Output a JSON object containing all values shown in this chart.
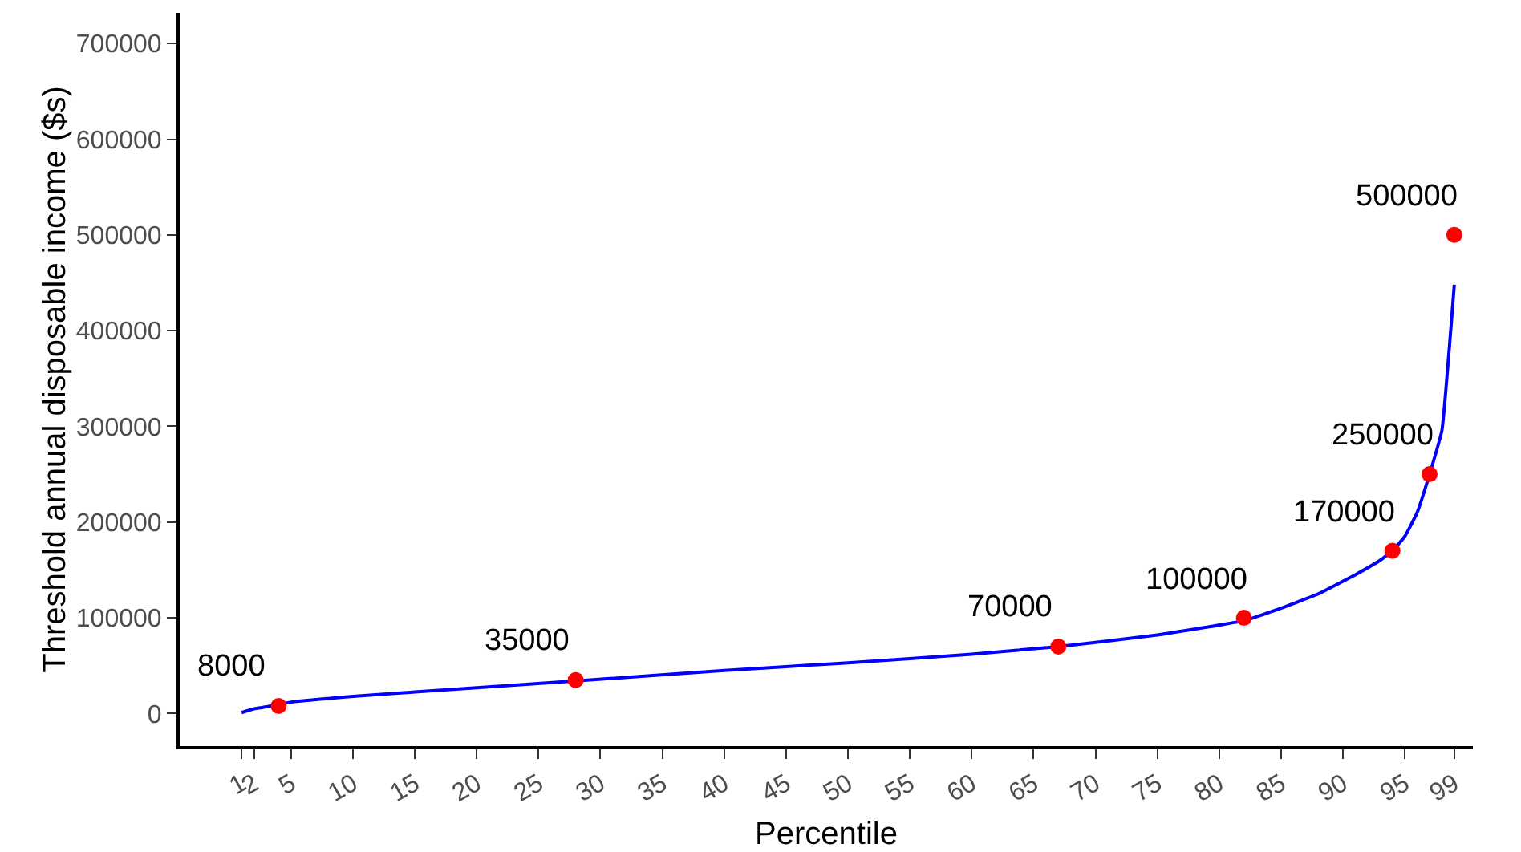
{
  "chart_data": {
    "type": "line",
    "xlabel": "Percentile",
    "ylabel": "Threshold annual disposable income ($s)",
    "xlim": [
      -4,
      100.5
    ],
    "ylim": [
      -34000,
      732000
    ],
    "xticks": [
      1,
      2,
      5,
      10,
      15,
      20,
      25,
      30,
      35,
      40,
      45,
      50,
      55,
      60,
      65,
      70,
      75,
      80,
      85,
      90,
      95,
      99
    ],
    "yticks": [
      0,
      100000,
      200000,
      300000,
      400000,
      500000,
      600000,
      700000
    ],
    "grid": false,
    "series": [
      {
        "color": "#0000ff",
        "line_style": "solid",
        "marker": "none",
        "x": [
          1,
          2,
          3,
          5,
          10,
          20,
          28,
          40,
          50,
          60,
          67,
          75,
          82,
          85,
          88,
          91,
          93,
          94,
          95,
          96,
          97,
          98,
          99
        ],
        "values": [
          1000,
          5000,
          7000,
          12000,
          18000,
          27000,
          34000,
          45000,
          53000,
          62000,
          70000,
          82000,
          97000,
          110000,
          125000,
          145000,
          160000,
          170000,
          185000,
          210000,
          250000,
          296000,
          448000
        ]
      },
      {
        "type": "scatter",
        "color": "#ff0000",
        "marker": "circle",
        "x": [
          4,
          28,
          67,
          82,
          94,
          97,
          99
        ],
        "values": [
          8000,
          35000,
          70000,
          100000,
          170000,
          250000,
          500000
        ]
      }
    ],
    "annotations": [
      {
        "text": "8000",
        "x": 4,
        "y": 8000
      },
      {
        "text": "35000",
        "x": 28,
        "y": 35000
      },
      {
        "text": "70000",
        "x": 67,
        "y": 70000
      },
      {
        "text": "100000",
        "x": 82,
        "y": 100000
      },
      {
        "text": "170000",
        "x": 94,
        "y": 170000
      },
      {
        "text": "250000",
        "x": 97,
        "y": 250000
      },
      {
        "text": "500000",
        "x": 99,
        "y": 500000
      }
    ]
  }
}
